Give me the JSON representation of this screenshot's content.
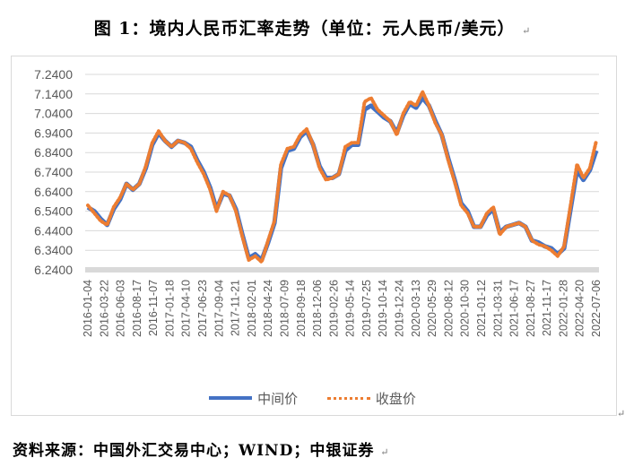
{
  "document": {
    "figure_title": "图 1：境内人民币汇率走势（单位：元人民币/美元）",
    "paragraph_mark": "↵",
    "source_text": "资料来源：中国外汇交易中心；WIND；中银证券"
  },
  "legend": {
    "items": [
      {
        "label": "中间价",
        "style": "solid",
        "color": "#4472c4"
      },
      {
        "label": "收盘价",
        "style": "dotted",
        "color": "#ed7d31"
      }
    ]
  },
  "chart_data": {
    "type": "line",
    "title": "图 1：境内人民币汇率走势（单位：元人民币/美元）",
    "xlabel": "",
    "ylabel": "",
    "ylim": [
      6.24,
      7.24
    ],
    "yticks": [
      "7.2400",
      "7.1400",
      "7.0400",
      "6.9400",
      "6.8400",
      "6.7400",
      "6.6400",
      "6.5400",
      "6.4400",
      "6.3400",
      "6.2400"
    ],
    "xtick_labels": [
      "2016-01-04",
      "2016-03-22",
      "2016-06-03",
      "2016-08-17",
      "2016-11-07",
      "2017-01-18",
      "2017-04-10",
      "2017-06-23",
      "2017-09-04",
      "2017-11-21",
      "2018-02-01",
      "2018-04-24",
      "2018-07-09",
      "2018-09-18",
      "2018-12-06",
      "2019-02-26",
      "2019-05-14",
      "2019-07-25",
      "2019-10-14",
      "2019-12-24",
      "2020-03-13",
      "2020-05-29",
      "2020-08-12",
      "2020-10-30",
      "2021-01-12",
      "2021-03-31",
      "2021-06-17",
      "2021-08-27",
      "2021-11-17",
      "2022-01-28",
      "2022-04-20",
      "2022-07-06"
    ],
    "grid": true,
    "legend_position": "bottom",
    "x": [
      "2016-01",
      "2016-02",
      "2016-03",
      "2016-04",
      "2016-05",
      "2016-06",
      "2016-07",
      "2016-08",
      "2016-09",
      "2016-10",
      "2016-11",
      "2016-12",
      "2017-01",
      "2017-02",
      "2017-03",
      "2017-04",
      "2017-05",
      "2017-06",
      "2017-07",
      "2017-08",
      "2017-09",
      "2017-10",
      "2017-11",
      "2017-12",
      "2018-01",
      "2018-02",
      "2018-03",
      "2018-04",
      "2018-05",
      "2018-06",
      "2018-07",
      "2018-08",
      "2018-09",
      "2018-10",
      "2018-11",
      "2018-12",
      "2019-01",
      "2019-02",
      "2019-03",
      "2019-04",
      "2019-05",
      "2019-06",
      "2019-07",
      "2019-08",
      "2019-09",
      "2019-10",
      "2019-11",
      "2019-12",
      "2020-01",
      "2020-02",
      "2020-03",
      "2020-04",
      "2020-05",
      "2020-06",
      "2020-07",
      "2020-08",
      "2020-09",
      "2020-10",
      "2020-11",
      "2020-12",
      "2021-01",
      "2021-02",
      "2021-03",
      "2021-04",
      "2021-05",
      "2021-06",
      "2021-07",
      "2021-08",
      "2021-09",
      "2021-10",
      "2021-11",
      "2021-12",
      "2022-01",
      "2022-02",
      "2022-03",
      "2022-04",
      "2022-05",
      "2022-06",
      "2022-07",
      "2022-08"
    ],
    "series": [
      {
        "name": "中间价",
        "values": [
          6.56,
          6.54,
          6.5,
          6.47,
          6.55,
          6.6,
          6.68,
          6.65,
          6.68,
          6.76,
          6.88,
          6.94,
          6.9,
          6.87,
          6.9,
          6.89,
          6.87,
          6.8,
          6.74,
          6.66,
          6.55,
          6.63,
          6.62,
          6.55,
          6.42,
          6.3,
          6.32,
          6.29,
          6.38,
          6.48,
          6.76,
          6.85,
          6.86,
          6.92,
          6.95,
          6.88,
          6.77,
          6.71,
          6.71,
          6.73,
          6.85,
          6.88,
          6.88,
          7.06,
          7.08,
          7.05,
          7.02,
          7.0,
          6.94,
          7.03,
          7.09,
          7.07,
          7.12,
          7.08,
          7.0,
          6.93,
          6.81,
          6.7,
          6.58,
          6.54,
          6.46,
          6.46,
          6.52,
          6.55,
          6.43,
          6.46,
          6.47,
          6.48,
          6.46,
          6.39,
          6.38,
          6.36,
          6.35,
          6.32,
          6.35,
          6.55,
          6.75,
          6.7,
          6.75,
          6.85
        ]
      },
      {
        "name": "收盘价",
        "values": [
          6.57,
          6.53,
          6.49,
          6.47,
          6.56,
          6.61,
          6.68,
          6.65,
          6.68,
          6.77,
          6.89,
          6.95,
          6.9,
          6.87,
          6.9,
          6.89,
          6.86,
          6.79,
          6.73,
          6.65,
          6.54,
          6.64,
          6.62,
          6.54,
          6.41,
          6.29,
          6.31,
          6.28,
          6.39,
          6.49,
          6.78,
          6.86,
          6.87,
          6.93,
          6.96,
          6.88,
          6.76,
          6.7,
          6.71,
          6.73,
          6.87,
          6.89,
          6.89,
          7.1,
          7.12,
          7.06,
          7.03,
          7.0,
          6.93,
          7.04,
          7.1,
          7.08,
          7.15,
          7.08,
          6.99,
          6.93,
          6.8,
          6.69,
          6.57,
          6.53,
          6.46,
          6.46,
          6.53,
          6.56,
          6.42,
          6.46,
          6.47,
          6.48,
          6.46,
          6.39,
          6.37,
          6.36,
          6.34,
          6.31,
          6.36,
          6.57,
          6.78,
          6.71,
          6.76,
          6.9
        ]
      }
    ]
  }
}
